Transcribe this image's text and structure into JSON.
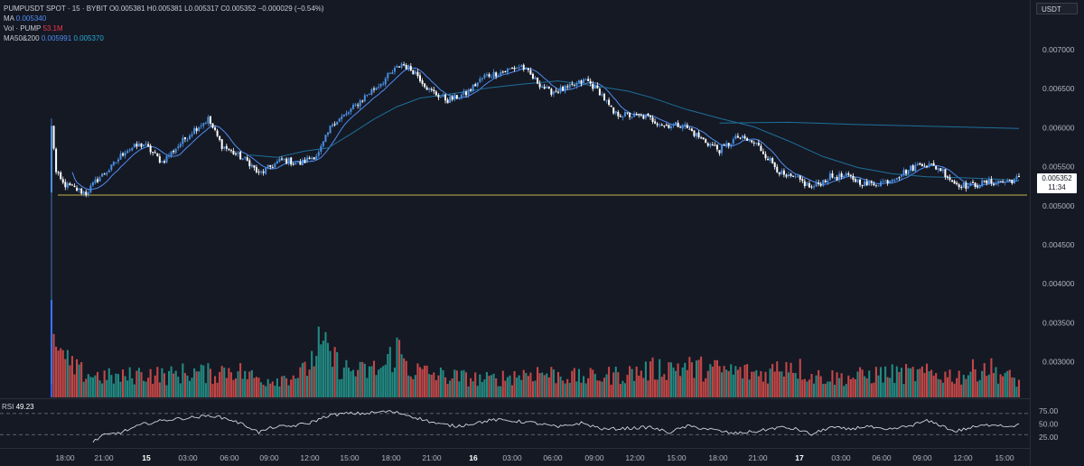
{
  "legend": {
    "symbol": "PUMPUSDT SPOT · 15 · BYBIT",
    "ohlc": {
      "o_label": "O",
      "o": "0.005381",
      "h_label": "H",
      "h": "0.005381",
      "l_label": "L",
      "l": "0.005317",
      "c_label": "C",
      "c": "0.005352",
      "change": "−0.000029 (−0.54%)"
    },
    "ma": {
      "label": "MA",
      "value": "0.005340"
    },
    "vol": {
      "label": "Vol · PUMP",
      "value": "53.1M"
    },
    "ma50200": {
      "label": "MA50&200",
      "value1": "0.005991",
      "value2": "0.005370"
    }
  },
  "price_scale": {
    "unit": "USDT",
    "last_price": "0.005352",
    "countdown": "11:34"
  },
  "rsi": {
    "label": "RSI",
    "value": "49.23"
  },
  "colors": {
    "background": "#151924",
    "up": "#4a90e2",
    "down": "#ffffff",
    "vol_up": "#26a69a",
    "vol_down": "#ef5350",
    "ma_short": "#4f8cf0",
    "ma_long": "#1e6f9a",
    "support": "#c8b44a",
    "rsi_line": "#d1d4dc"
  },
  "chart_data": [
    {
      "type": "candlestick",
      "title": "PUMPUSDT SPOT · 15 · BYBIT",
      "ylim": [
        0.0026,
        0.0072
      ],
      "y_ticks": [
        "0.007000",
        "0.006500",
        "0.006000",
        "0.005500",
        "0.005000",
        "0.004500",
        "0.004000",
        "0.003500",
        "0.003000"
      ],
      "x_ticks": [
        "18:00",
        "21:00",
        "15",
        "03:00",
        "06:00",
        "09:00",
        "12:00",
        "15:00",
        "18:00",
        "21:00",
        "16",
        "03:00",
        "06:00",
        "09:00",
        "12:00",
        "15:00",
        "18:00",
        "21:00",
        "17",
        "03:00",
        "06:00",
        "09:00",
        "12:00",
        "15:00"
      ],
      "x_ticks_bold": [
        "15",
        "16",
        "17"
      ],
      "anchors": [
        [
          0,
          0.00601
        ],
        [
          1,
          0.00575
        ],
        [
          2,
          0.00542
        ],
        [
          5,
          0.00528
        ],
        [
          10,
          0.00522
        ],
        [
          15,
          0.00516
        ],
        [
          20,
          0.00534
        ],
        [
          26,
          0.00549
        ],
        [
          32,
          0.00571
        ],
        [
          40,
          0.00579
        ],
        [
          48,
          0.00556
        ],
        [
          56,
          0.0058
        ],
        [
          62,
          0.00598
        ],
        [
          68,
          0.00611
        ],
        [
          74,
          0.00577
        ],
        [
          80,
          0.00566
        ],
        [
          86,
          0.00555
        ],
        [
          90,
          0.0054
        ],
        [
          94,
          0.00548
        ],
        [
          100,
          0.00559
        ],
        [
          108,
          0.00554
        ],
        [
          116,
          0.00567
        ],
        [
          122,
          0.00606
        ],
        [
          128,
          0.00617
        ],
        [
          136,
          0.0064
        ],
        [
          144,
          0.0066
        ],
        [
          152,
          0.00682
        ],
        [
          158,
          0.00671
        ],
        [
          164,
          0.00648
        ],
        [
          172,
          0.00635
        ],
        [
          180,
          0.00644
        ],
        [
          188,
          0.00666
        ],
        [
          196,
          0.00672
        ],
        [
          204,
          0.00679
        ],
        [
          210,
          0.00661
        ],
        [
          216,
          0.00646
        ],
        [
          224,
          0.0065
        ],
        [
          232,
          0.00661
        ],
        [
          238,
          0.00646
        ],
        [
          244,
          0.00618
        ],
        [
          250,
          0.00616
        ],
        [
          258,
          0.00614
        ],
        [
          266,
          0.00603
        ],
        [
          274,
          0.00604
        ],
        [
          282,
          0.00586
        ],
        [
          290,
          0.00571
        ],
        [
          298,
          0.00588
        ],
        [
          306,
          0.00579
        ],
        [
          312,
          0.00558
        ],
        [
          318,
          0.00537
        ],
        [
          324,
          0.00534
        ],
        [
          330,
          0.00523
        ],
        [
          338,
          0.00537
        ],
        [
          346,
          0.00537
        ],
        [
          354,
          0.00527
        ],
        [
          362,
          0.00531
        ],
        [
          370,
          0.00543
        ],
        [
          378,
          0.00555
        ],
        [
          386,
          0.00547
        ],
        [
          392,
          0.00529
        ],
        [
          398,
          0.00525
        ],
        [
          406,
          0.0053
        ],
        [
          414,
          0.00531
        ],
        [
          420,
          0.00535
        ]
      ],
      "first_candle": {
        "open": 0.00517,
        "high": 0.00612,
        "low": 0.00272,
        "close": 0.00601
      },
      "ma_short_offset_from_close": 0,
      "ma50200_series": [
        {
          "name": "MA50",
          "values": [
            [
              86,
              0.00565
            ],
            [
              98,
              0.00562
            ],
            [
              110,
              0.0057
            ],
            [
              120,
              0.00574
            ],
            [
              130,
              0.00592
            ],
            [
              140,
              0.00611
            ],
            [
              150,
              0.00627
            ],
            [
              160,
              0.00638
            ],
            [
              175,
              0.00644
            ],
            [
              190,
              0.00651
            ],
            [
              205,
              0.00656
            ],
            [
              220,
              0.0066
            ],
            [
              235,
              0.00654
            ],
            [
              250,
              0.00647
            ],
            [
              260,
              0.00639
            ],
            [
              275,
              0.00624
            ],
            [
              290,
              0.00612
            ],
            [
              305,
              0.00601
            ],
            [
              320,
              0.00583
            ],
            [
              335,
              0.00563
            ],
            [
              350,
              0.00549
            ],
            [
              365,
              0.00541
            ],
            [
              380,
              0.00537
            ],
            [
              395,
              0.00536
            ],
            [
              410,
              0.00534
            ],
            [
              420,
              0.00532
            ]
          ]
        },
        {
          "name": "MA200",
          "values": [
            [
              290,
              0.00606
            ],
            [
              320,
              0.00607
            ],
            [
              350,
              0.00604
            ],
            [
              380,
              0.00602
            ],
            [
              420,
              0.00599
            ]
          ]
        }
      ],
      "support_level": 0.005137
    },
    {
      "type": "bar",
      "title": "Vol · PUMP",
      "first_bar_value": 100,
      "typical_values": [
        [
          0,
          100
        ],
        [
          1,
          65
        ],
        [
          2,
          52
        ],
        [
          3,
          48
        ],
        [
          5,
          40
        ],
        [
          8,
          32
        ],
        [
          12,
          26
        ],
        [
          20,
          22
        ],
        [
          30,
          20
        ],
        [
          40,
          25
        ],
        [
          50,
          22
        ],
        [
          60,
          26
        ],
        [
          70,
          24
        ],
        [
          78,
          30
        ],
        [
          86,
          22
        ],
        [
          92,
          18
        ],
        [
          100,
          20
        ],
        [
          110,
          26
        ],
        [
          116,
          52
        ],
        [
          120,
          45
        ],
        [
          126,
          30
        ],
        [
          134,
          26
        ],
        [
          144,
          30
        ],
        [
          150,
          50
        ],
        [
          156,
          28
        ],
        [
          170,
          22
        ],
        [
          190,
          18
        ],
        [
          210,
          26
        ],
        [
          230,
          20
        ],
        [
          250,
          24
        ],
        [
          270,
          32
        ],
        [
          290,
          28
        ],
        [
          310,
          24
        ],
        [
          320,
          36
        ],
        [
          330,
          22
        ],
        [
          345,
          20
        ],
        [
          360,
          24
        ],
        [
          380,
          24
        ],
        [
          395,
          22
        ],
        [
          405,
          32
        ],
        [
          420,
          16
        ]
      ]
    },
    {
      "type": "line",
      "title": "RSI",
      "ylim": [
        15,
        80
      ],
      "y_ticks": [
        "75.00",
        "50.00",
        "25.00"
      ],
      "bands": [
        70,
        30
      ],
      "anchors": [
        [
          18,
          16
        ],
        [
          22,
          28
        ],
        [
          30,
          34
        ],
        [
          40,
          50
        ],
        [
          50,
          58
        ],
        [
          60,
          62
        ],
        [
          70,
          66
        ],
        [
          78,
          58
        ],
        [
          86,
          44
        ],
        [
          90,
          34
        ],
        [
          96,
          44
        ],
        [
          104,
          46
        ],
        [
          112,
          52
        ],
        [
          120,
          66
        ],
        [
          128,
          70
        ],
        [
          136,
          70
        ],
        [
          146,
          74
        ],
        [
          152,
          70
        ],
        [
          160,
          60
        ],
        [
          168,
          50
        ],
        [
          176,
          46
        ],
        [
          184,
          52
        ],
        [
          192,
          58
        ],
        [
          200,
          56
        ],
        [
          210,
          52
        ],
        [
          220,
          44
        ],
        [
          230,
          52
        ],
        [
          240,
          40
        ],
        [
          250,
          42
        ],
        [
          260,
          44
        ],
        [
          268,
          34
        ],
        [
          276,
          46
        ],
        [
          286,
          40
        ],
        [
          296,
          32
        ],
        [
          306,
          36
        ],
        [
          316,
          44
        ],
        [
          324,
          40
        ],
        [
          330,
          30
        ],
        [
          338,
          44
        ],
        [
          346,
          40
        ],
        [
          354,
          46
        ],
        [
          362,
          38
        ],
        [
          372,
          46
        ],
        [
          380,
          56
        ],
        [
          386,
          48
        ],
        [
          392,
          36
        ],
        [
          400,
          44
        ],
        [
          410,
          50
        ],
        [
          414,
          46
        ],
        [
          420,
          48
        ]
      ]
    }
  ]
}
